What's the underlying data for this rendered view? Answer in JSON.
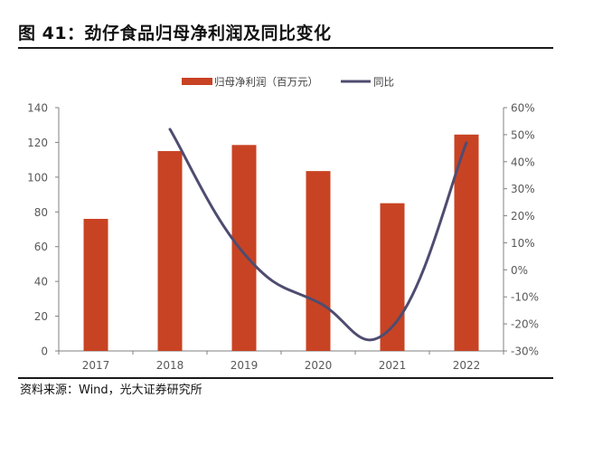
{
  "figure": {
    "title": "图 41：劲仔食品归母净利润及同比变化",
    "source": "资料来源：Wind，光大证券研究所"
  },
  "colors": {
    "bar": "#C84323",
    "line": "#4E4C70",
    "axis": "#808080"
  },
  "chart_data": {
    "type": "bar",
    "title": "劲仔食品归母净利润及同比变化",
    "categories": [
      "2017",
      "2018",
      "2019",
      "2020",
      "2021",
      "2022"
    ],
    "series": [
      {
        "name": "归母净利润（百万元）",
        "type": "bar",
        "axis": "left",
        "values": [
          76,
          115,
          118.5,
          103.5,
          85,
          124.5
        ]
      },
      {
        "name": "同比",
        "type": "line",
        "axis": "right",
        "unit": "%",
        "values": [
          null,
          52,
          6,
          -12,
          -21,
          47
        ]
      }
    ],
    "ylim": [
      0,
      140
    ],
    "y_ticks": [
      0,
      20,
      40,
      60,
      80,
      100,
      120,
      140
    ],
    "y2lim": [
      -30,
      60
    ],
    "y2_ticks": [
      "-30%",
      "-20%",
      "-10%",
      "0%",
      "10%",
      "20%",
      "30%",
      "40%",
      "50%",
      "60%"
    ],
    "legend_position": "top-center"
  }
}
